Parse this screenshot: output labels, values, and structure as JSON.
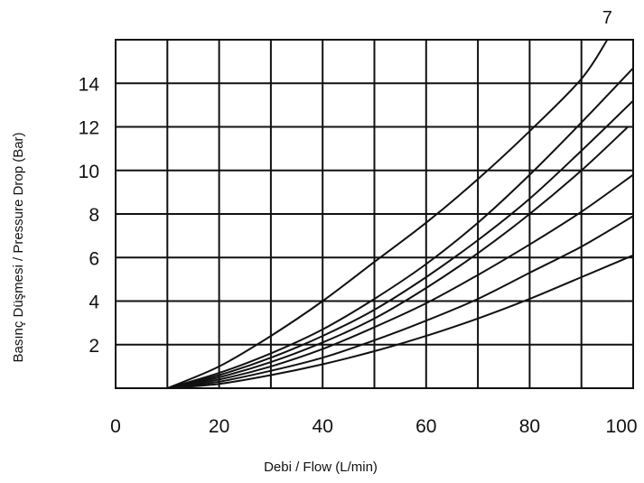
{
  "chart_data": {
    "type": "line",
    "xlabel": "Debi / Flow (L/min)",
    "ylabel": "Basınç Düşmesi / Pressure Drop (Bar)",
    "xlim": [
      0,
      100
    ],
    "ylim": [
      0,
      16
    ],
    "x_ticks": [
      "0",
      "20",
      "40",
      "60",
      "80",
      "100"
    ],
    "y_ticks": [
      "2",
      "4",
      "6",
      "8",
      "10",
      "12",
      "14"
    ],
    "x_gridlines": [
      10,
      20,
      30,
      40,
      50,
      60,
      70,
      80,
      90
    ],
    "y_gridlines": [
      2,
      4,
      6,
      8,
      10,
      12,
      14
    ],
    "grid": true,
    "series": [
      {
        "name": "7",
        "x": [
          10,
          20,
          30,
          40,
          50,
          60,
          70,
          80,
          90,
          95
        ],
        "y": [
          0,
          1.0,
          2.4,
          4.0,
          5.8,
          7.6,
          9.6,
          11.8,
          14.2,
          16.0
        ]
      },
      {
        "x": [
          10,
          20,
          30,
          40,
          50,
          60,
          70,
          80,
          90,
          100
        ],
        "y": [
          0,
          0.7,
          1.6,
          2.7,
          4.1,
          5.7,
          7.6,
          9.8,
          12.2,
          14.7
        ]
      },
      {
        "x": [
          10,
          20,
          30,
          40,
          50,
          60,
          70,
          80,
          90,
          100
        ],
        "y": [
          0,
          0.6,
          1.4,
          2.4,
          3.6,
          5.1,
          6.8,
          8.7,
          10.9,
          13.2
        ]
      },
      {
        "x": [
          10,
          20,
          30,
          40,
          50,
          60,
          70,
          80,
          90,
          99
        ],
        "y": [
          0,
          0.5,
          1.2,
          2.1,
          3.2,
          4.6,
          6.2,
          8.0,
          10.0,
          12.0
        ]
      },
      {
        "x": [
          10,
          20,
          30,
          40,
          50,
          60,
          70,
          80,
          90,
          100
        ],
        "y": [
          0,
          0.4,
          1.0,
          1.8,
          2.8,
          3.9,
          5.2,
          6.6,
          8.1,
          9.8
        ]
      },
      {
        "x": [
          10,
          20,
          30,
          40,
          50,
          60,
          70,
          80,
          90,
          100
        ],
        "y": [
          0,
          0.3,
          0.8,
          1.4,
          2.2,
          3.1,
          4.1,
          5.3,
          6.5,
          7.9
        ]
      },
      {
        "x": [
          10,
          20,
          30,
          40,
          50,
          60,
          70,
          80,
          90,
          100
        ],
        "y": [
          0,
          0.2,
          0.6,
          1.1,
          1.7,
          2.4,
          3.2,
          4.1,
          5.1,
          6.1
        ]
      }
    ]
  }
}
